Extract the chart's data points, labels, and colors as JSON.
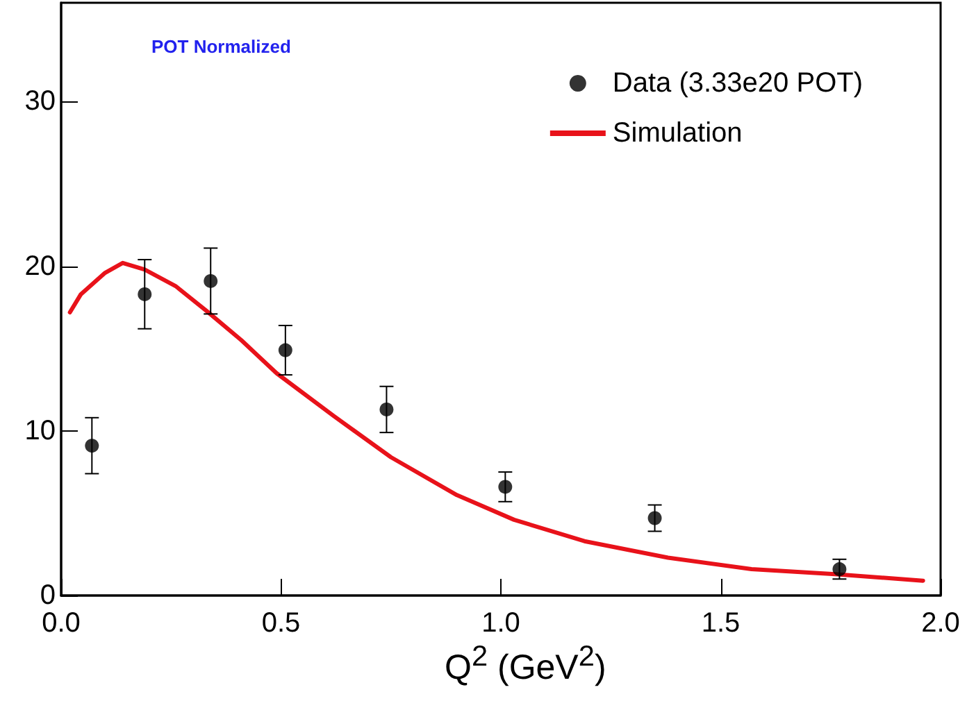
{
  "chart_data": {
    "type": "scatter",
    "xlabel": "Q$^{2}$ (GeV$^{2}$)",
    "annotations": [
      "POT Normalized"
    ],
    "xlim": [
      0,
      2
    ],
    "xticks": [
      {
        "value": 0,
        "label": "0.0"
      },
      {
        "value": 0.5,
        "label": "0.5"
      },
      {
        "value": 1,
        "label": "1.0"
      },
      {
        "value": 1.5,
        "label": "1.5"
      },
      {
        "value": 2,
        "label": "2.0"
      }
    ],
    "ylim": [
      0,
      36
    ],
    "yticks": [
      0,
      10,
      20,
      30
    ],
    "legend": "top right",
    "grid": false,
    "series": [
      {
        "name": "Data (3.33e20 POT)",
        "color": "#000000",
        "marker": "circle",
        "x": [
          0.07,
          0.19,
          0.34,
          0.51,
          0.74,
          1.01,
          1.35,
          1.77
        ],
        "values": [
          9.1,
          18.3,
          19.1,
          14.9,
          11.3,
          6.6,
          4.7,
          1.6
        ],
        "errors": [
          1.7,
          2.1,
          2,
          1.5,
          1.4,
          0.9,
          0.8,
          0.6
        ]
      },
      {
        "name": "Simulation",
        "type": "line",
        "color": "#e8121a",
        "marker": "none",
        "line_style": "solid",
        "x": [
          0.02,
          0.045,
          0.1,
          0.14,
          0.19,
          0.26,
          0.33,
          0.41,
          0.49,
          0.62,
          0.75,
          0.9,
          1.03,
          1.19,
          1.38,
          1.57,
          1.76,
          1.96
        ],
        "values": [
          17.2,
          18.3,
          19.6,
          20.2,
          19.8,
          18.8,
          17.3,
          15.5,
          13.5,
          10.9,
          8.4,
          6.1,
          4.6,
          3.3,
          2.3,
          1.6,
          1.3,
          0.9
        ]
      }
    ]
  }
}
